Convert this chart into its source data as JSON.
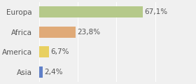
{
  "categories": [
    "Europa",
    "Africa",
    "America",
    "Asia"
  ],
  "values": [
    67.1,
    23.8,
    6.7,
    2.4
  ],
  "labels": [
    "67,1%",
    "23,8%",
    "6,7%",
    "2,4%"
  ],
  "bar_colors": [
    "#b5c98a",
    "#e0aa78",
    "#e8d060",
    "#6080c8"
  ],
  "background_color": "#f0f0f0",
  "xlim": [
    0,
    100
  ],
  "bar_height": 0.55,
  "label_fontsize": 7.5,
  "category_fontsize": 7.5,
  "grid_color": "#ffffff",
  "grid_positions": [
    0,
    25,
    50,
    75,
    100
  ]
}
